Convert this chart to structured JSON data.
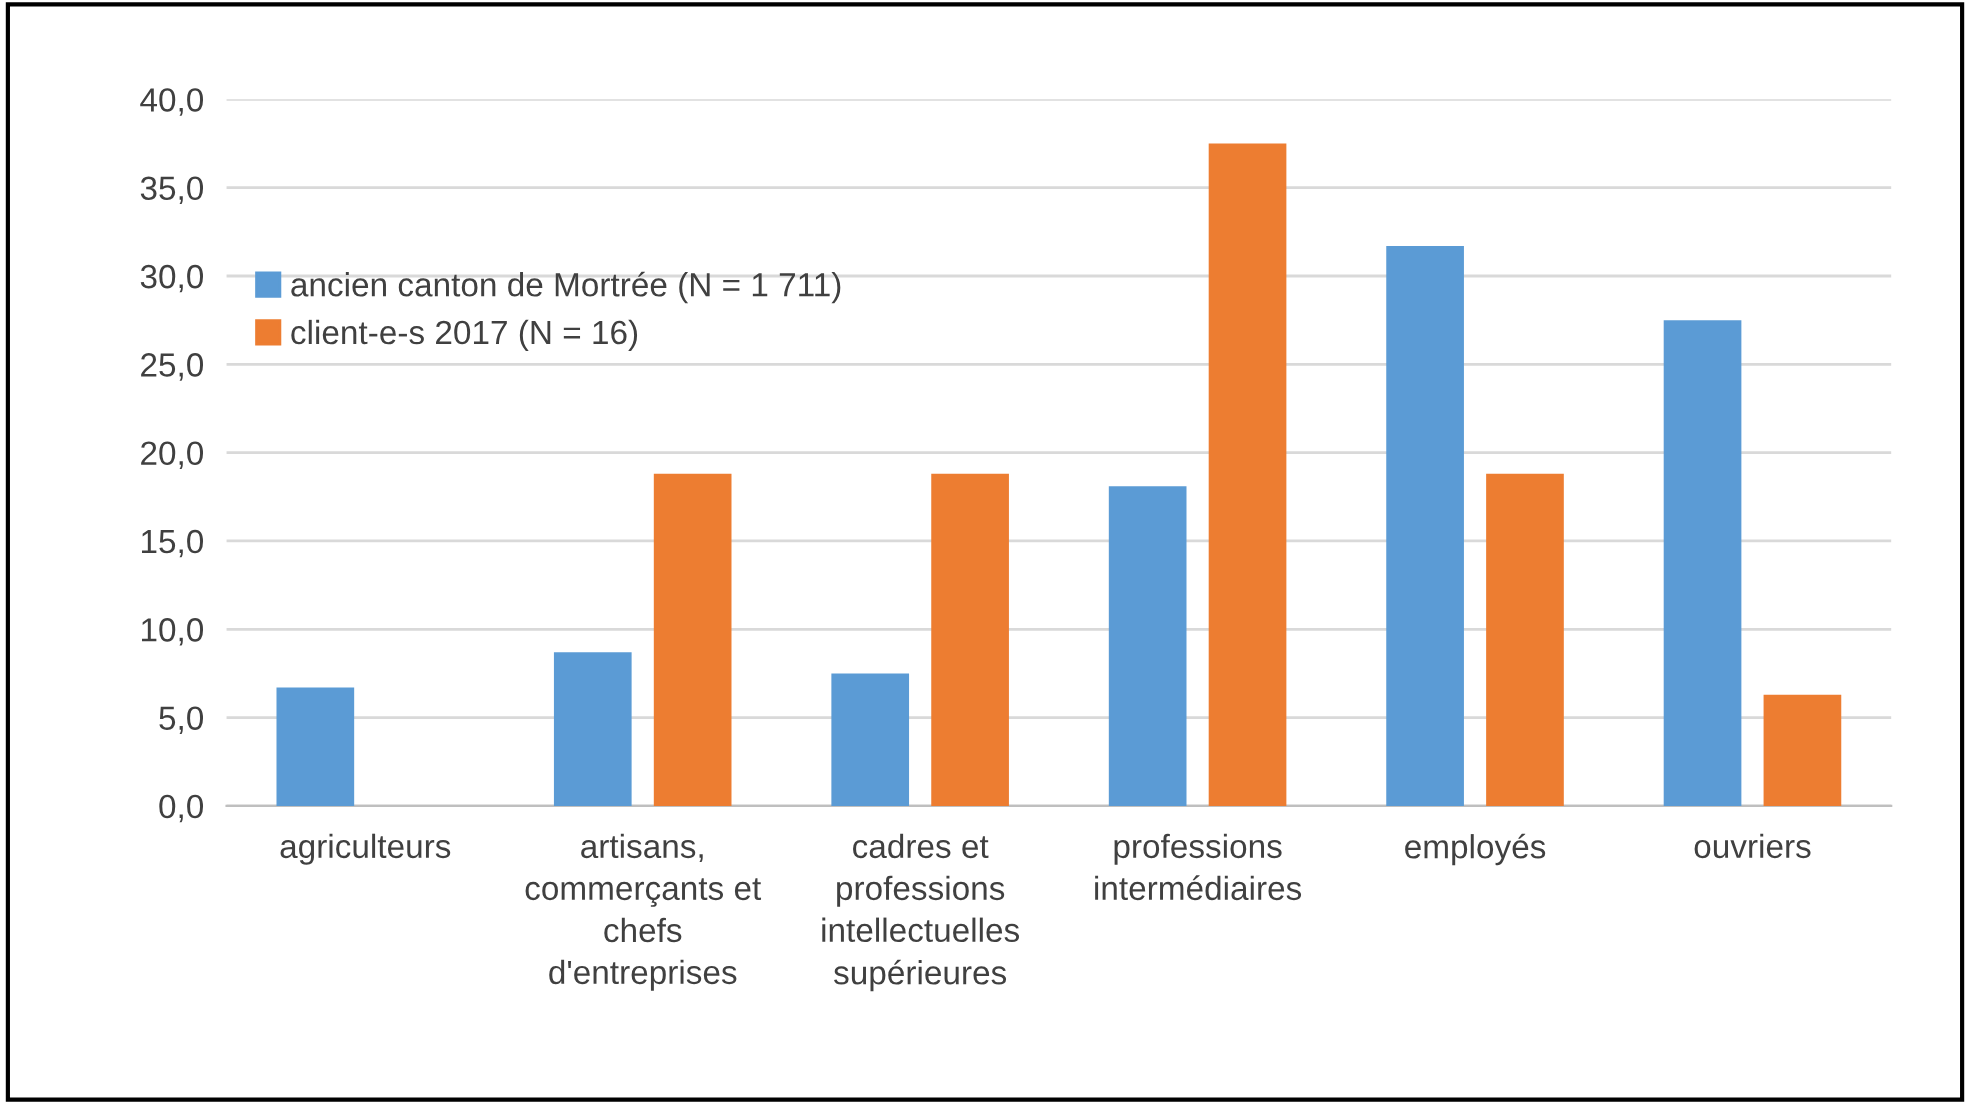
{
  "chart_data": {
    "type": "bar",
    "categories": [
      "agriculteurs",
      "artisans,\ncommerçants et\nchefs\nd'entreprises",
      "cadres et\nprofessions\nintellectuelles\nsupérieures",
      "professions\nintermédiaires",
      "employés",
      "ouvriers"
    ],
    "series": [
      {
        "name": "ancien canton de Mortrée (N = 1 711)",
        "color": "#5b9bd5",
        "values": [
          6.7,
          8.7,
          7.5,
          18.1,
          31.7,
          27.5
        ]
      },
      {
        "name": "client-e-s 2017 (N = 16)",
        "color": "#ed7d31",
        "values": [
          0,
          18.8,
          18.8,
          37.5,
          18.8,
          6.3
        ]
      }
    ],
    "ylim": [
      0,
      40
    ],
    "yticks": [
      {
        "value": 0,
        "label": "0,0"
      },
      {
        "value": 5,
        "label": "5,0"
      },
      {
        "value": 10,
        "label": "10,0"
      },
      {
        "value": 15,
        "label": "15,0"
      },
      {
        "value": 20,
        "label": "20,0"
      },
      {
        "value": 25,
        "label": "25,0"
      },
      {
        "value": 30,
        "label": "30,0"
      },
      {
        "value": 35,
        "label": "35,0"
      },
      {
        "value": 40,
        "label": "40,0"
      }
    ],
    "grid": "y",
    "legend": "left"
  }
}
